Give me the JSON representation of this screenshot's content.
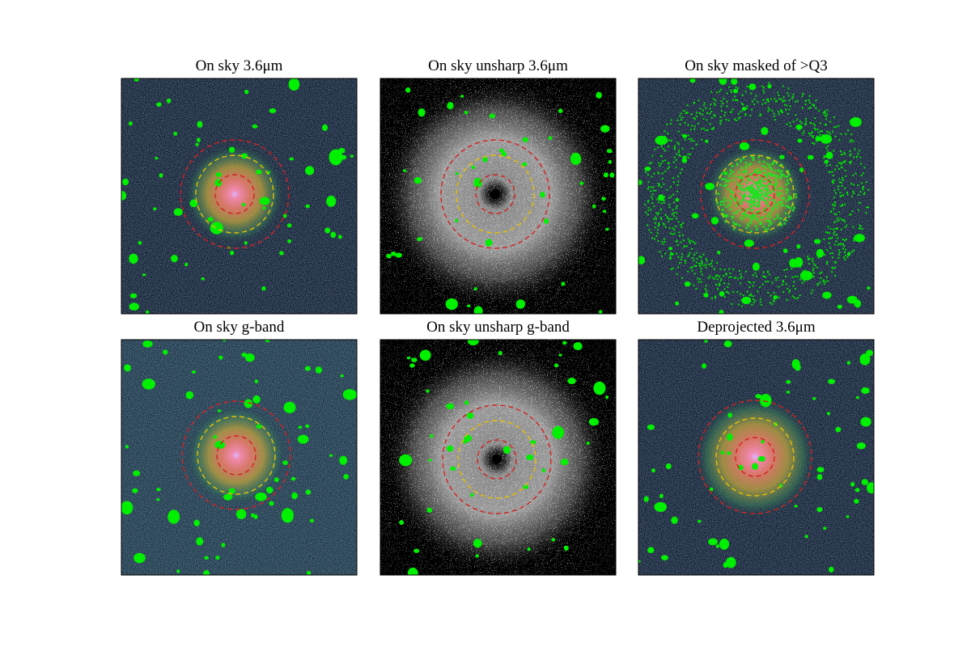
{
  "panels": [
    {
      "title": "On sky 3.6μm"
    },
    {
      "title": "On sky unsharp 3.6μm"
    },
    {
      "title": "On sky masked of >Q3"
    },
    {
      "title": "On sky g-band"
    },
    {
      "title": "On sky unsharp g-band"
    },
    {
      "title": "Deprojected 3.6μm"
    }
  ]
}
